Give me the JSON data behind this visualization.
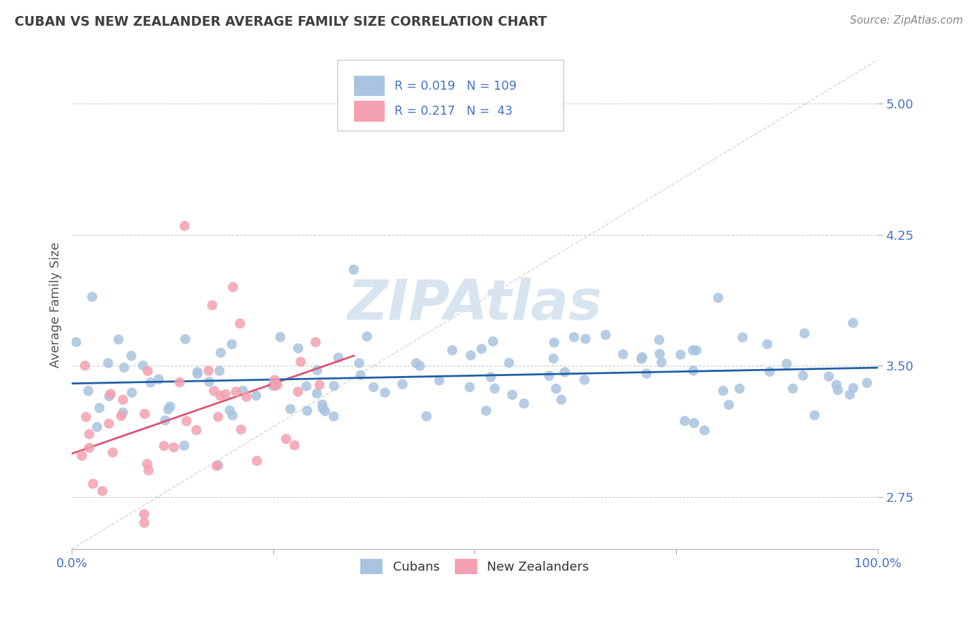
{
  "title": "CUBAN VS NEW ZEALANDER AVERAGE FAMILY SIZE CORRELATION CHART",
  "source_text": "Source: ZipAtlas.com",
  "ylabel": "Average Family Size",
  "xlim": [
    0.0,
    1.0
  ],
  "ylim": [
    2.45,
    5.25
  ],
  "yticks": [
    2.75,
    3.5,
    4.25,
    5.0
  ],
  "xticks": [
    0.0,
    0.25,
    0.5,
    0.75,
    1.0
  ],
  "xticklabels": [
    "0.0%",
    "",
    "",
    "",
    "100.0%"
  ],
  "background_color": "#ffffff",
  "grid_color": "#cccccc",
  "axis_label_color": "#4472c4",
  "title_color": "#404040",
  "r_cubans": 0.019,
  "n_cubans": 109,
  "r_nz": 0.217,
  "n_nz": 43,
  "cubans_color": "#a8c4e0",
  "nz_color": "#f4a0b0",
  "nz_line_color": "#e05070",
  "trend_line_color": "#1f5fa6",
  "diag_line_color": "#cccccc",
  "legend_r_color": "#4472c4",
  "watermark_color": "#d8e4f0",
  "ylabel_color": "#555555"
}
